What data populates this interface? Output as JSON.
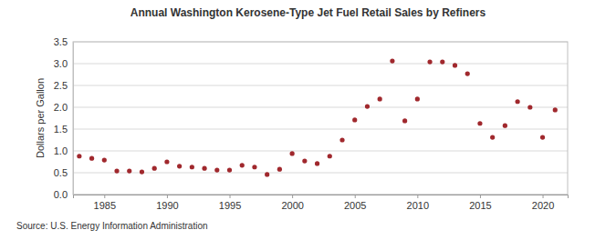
{
  "chart_data": {
    "type": "scatter",
    "title": "Annual Washington Kerosene-Type Jet Fuel Retail Sales by Refiners",
    "y_label": "Dollars per Gallon",
    "source": "Source: U.S. Energy Information Administration",
    "x": [
      1983,
      1984,
      1985,
      1986,
      1987,
      1988,
      1989,
      1990,
      1991,
      1992,
      1993,
      1994,
      1995,
      1996,
      1997,
      1998,
      1999,
      2000,
      2001,
      2002,
      2003,
      2004,
      2005,
      2006,
      2007,
      2008,
      2009,
      2010,
      2011,
      2012,
      2013,
      2014,
      2015,
      2016,
      2017,
      2018,
      2019,
      2020,
      2021
    ],
    "values": [
      0.88,
      0.83,
      0.79,
      0.54,
      0.54,
      0.52,
      0.6,
      0.75,
      0.65,
      0.63,
      0.6,
      0.56,
      0.56,
      0.67,
      0.63,
      0.46,
      0.58,
      0.94,
      0.77,
      0.71,
      0.88,
      1.25,
      1.71,
      2.02,
      2.19,
      3.06,
      1.69,
      2.19,
      3.04,
      3.04,
      2.96,
      2.77,
      1.63,
      1.31,
      1.58,
      2.13,
      2.0,
      1.31,
      1.94
    ],
    "color": "#a0282d",
    "marker": "circle",
    "xlim": [
      1982.5,
      2022
    ],
    "xticks": [
      1985,
      1990,
      1995,
      2000,
      2005,
      2010,
      2015,
      2020
    ],
    "ylim": [
      0,
      3.5
    ],
    "yticks": [
      {
        "value": 0,
        "label": "0.0"
      },
      {
        "value": 0.5,
        "label": "0.5"
      },
      {
        "value": 1,
        "label": "1.0"
      },
      {
        "value": 1.5,
        "label": "1.5"
      },
      {
        "value": 2,
        "label": "2.0"
      },
      {
        "value": 2.5,
        "label": "2.5"
      },
      {
        "value": 3,
        "label": "3.0"
      },
      {
        "value": 3.5,
        "label": "3.5"
      }
    ],
    "grid": true
  }
}
